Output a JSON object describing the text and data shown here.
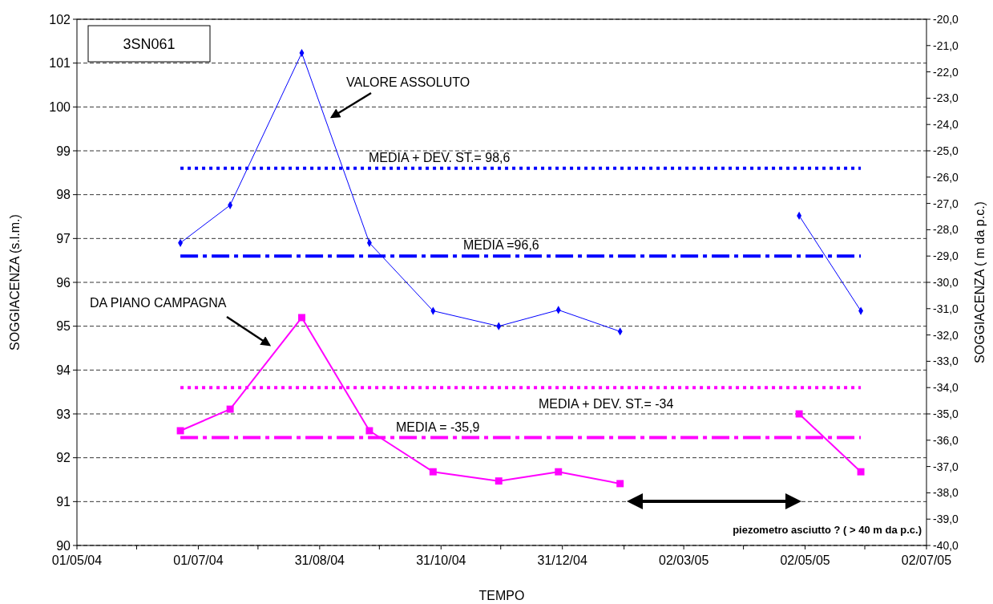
{
  "chart_data": {
    "type": "line",
    "title": "3SN061",
    "xlabel": "TEMPO",
    "ylabel": "SOGGIACENZA (s.l.m.)",
    "y2label": "SOGGIACENZA ( m da p.c.)",
    "x": [
      "2004-06-22",
      "2004-07-17",
      "2004-08-22",
      "2004-09-25",
      "2004-10-27",
      "2004-11-29",
      "2004-12-29",
      "2005-01-29",
      "2005-04-29",
      "2005-05-30"
    ],
    "series": [
      {
        "name": "VALORE ASSOLUTO",
        "color": "#0000ff",
        "marker": "diamond",
        "values": [
          96.9,
          97.76,
          101.23,
          96.9,
          95.35,
          95.0,
          95.37,
          94.88,
          97.52,
          95.35
        ]
      },
      {
        "name": "DA PIANO CAMPAGNA",
        "color": "#ff00ff",
        "marker": "square",
        "axis": "y2",
        "values": [
          -35.64,
          -34.82,
          -31.34,
          -35.64,
          -37.2,
          -37.55,
          -37.2,
          -37.65,
          -35.0,
          -37.2
        ]
      }
    ],
    "xlim": [
      "2004-05-01",
      "2005-07-02"
    ],
    "xticks": [
      {
        "value": "2004-05-01",
        "label": "01/05/04"
      },
      {
        "value": "2004-05-31",
        "label": null
      },
      {
        "value": "2004-07-01",
        "label": "01/07/04"
      },
      {
        "value": "2004-07-31",
        "label": null
      },
      {
        "value": "2004-08-31",
        "label": "31/08/04"
      },
      {
        "value": "2004-09-30",
        "label": null
      },
      {
        "value": "2004-10-31",
        "label": "31/10/04"
      },
      {
        "value": "2004-11-30",
        "label": null
      },
      {
        "value": "2004-12-31",
        "label": "31/12/04"
      },
      {
        "value": "2005-01-31",
        "label": null
      },
      {
        "value": "2005-03-02",
        "label": "02/03/05"
      },
      {
        "value": "2005-04-01",
        "label": null
      },
      {
        "value": "2005-05-02",
        "label": "02/05/05"
      },
      {
        "value": "2005-06-01",
        "label": null
      },
      {
        "value": "2005-07-02",
        "label": "02/07/05"
      }
    ],
    "ylim": [
      90,
      102
    ],
    "yticks": [
      90,
      91,
      92,
      93,
      94,
      95,
      96,
      97,
      98,
      99,
      100,
      101,
      102
    ],
    "y2lim": [
      -40,
      -20
    ],
    "y2ticks": [
      {
        "value": -40,
        "label": "-40,0"
      },
      {
        "value": -39,
        "label": "-39,0"
      },
      {
        "value": -38,
        "label": "-38,0"
      },
      {
        "value": -37,
        "label": "-37,0"
      },
      {
        "value": -36,
        "label": "-36,0"
      },
      {
        "value": -35,
        "label": "-35,0"
      },
      {
        "value": -34,
        "label": "-34,0"
      },
      {
        "value": -33,
        "label": "-33,0"
      },
      {
        "value": -32,
        "label": "-32,0"
      },
      {
        "value": -31,
        "label": "-31,0"
      },
      {
        "value": -30,
        "label": "-30,0"
      },
      {
        "value": -29,
        "label": "-29,0"
      },
      {
        "value": -28,
        "label": "-28,0"
      },
      {
        "value": -27,
        "label": "-27,0"
      },
      {
        "value": -26,
        "label": "-26,0"
      },
      {
        "value": -25,
        "label": "-25,0"
      },
      {
        "value": -24,
        "label": "-24,0"
      },
      {
        "value": -23,
        "label": "-23,0"
      },
      {
        "value": -22,
        "label": "-22,0"
      },
      {
        "value": -21,
        "label": "-21,0"
      },
      {
        "value": -20,
        "label": "-20,0"
      }
    ],
    "grid": "y",
    "ref_lines": [
      {
        "axis": "y",
        "value": 98.6,
        "label": "MEDIA + DEV. ST.= 98,6",
        "color": "#0000ff",
        "line_style": "dotted"
      },
      {
        "axis": "y",
        "value": 96.6,
        "label": "MEDIA =96,6",
        "color": "#0000ff",
        "line_style": "dashed"
      },
      {
        "axis": "y2",
        "value": -34,
        "label": "MEDIA + DEV. ST.= -34",
        "color": "#ff00ff",
        "line_style": "dotted"
      },
      {
        "axis": "y2",
        "value": -35.9,
        "label": "MEDIA = -35,9",
        "color": "#ff00ff",
        "line_style": "dashed"
      }
    ],
    "annotations": [
      "piezometro asciutto ? ( > 40 m da p.c.)"
    ]
  }
}
